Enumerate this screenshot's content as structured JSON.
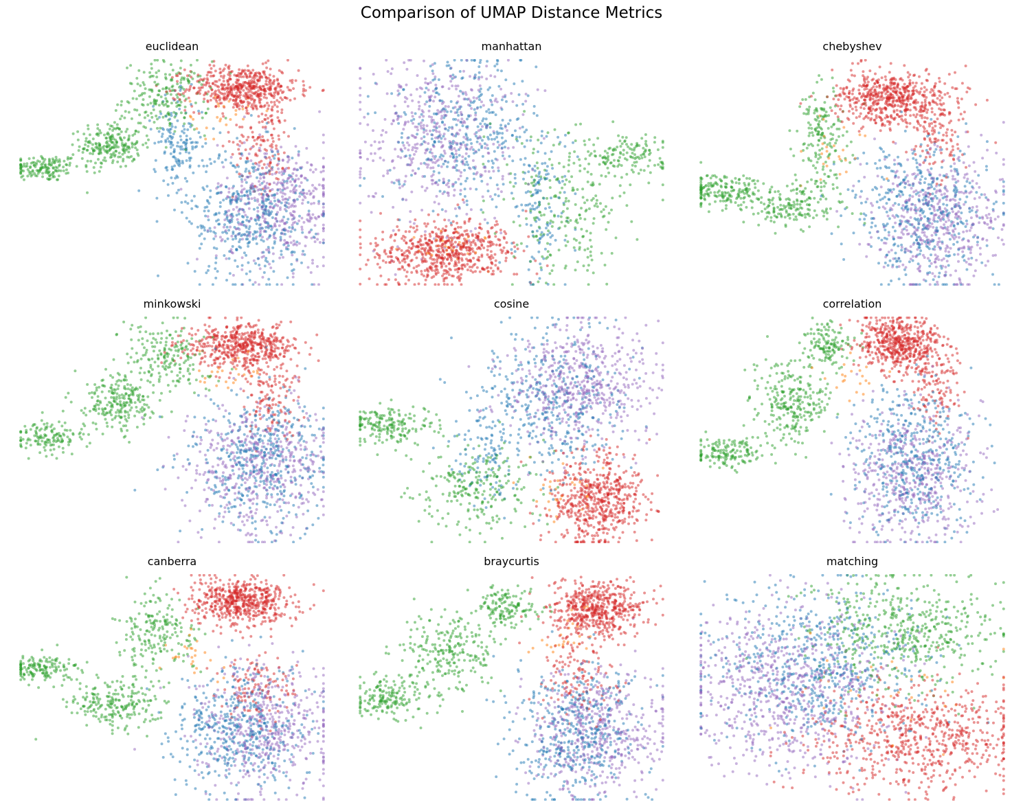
{
  "title": "Comparison of UMAP Distance Metrics",
  "colors": {
    "blue": "#1f77b4",
    "orange": "#ff7f0e",
    "green": "#2ca02c",
    "red": "#d62728",
    "purple": "#9467bd"
  },
  "chart_data": [
    {
      "type": "scatter",
      "title": "euclidean",
      "axes": "off",
      "grid": false,
      "legend": "none",
      "xlim": [
        0,
        100
      ],
      "ylim": [
        0,
        100
      ],
      "clusters": [
        {
          "color": "green",
          "n": 150,
          "cx": 8,
          "cy": 52,
          "sx": 6,
          "sy": 3
        },
        {
          "color": "green",
          "n": 220,
          "cx": 30,
          "cy": 62,
          "sx": 5,
          "sy": 5
        },
        {
          "color": "green",
          "n": 200,
          "cx": 48,
          "cy": 83,
          "sx": 7,
          "sy": 8
        },
        {
          "color": "red",
          "n": 520,
          "cx": 73,
          "cy": 87,
          "sx": 9,
          "sy": 5
        },
        {
          "color": "red",
          "n": 130,
          "cx": 80,
          "cy": 63,
          "sx": 5,
          "sy": 10
        },
        {
          "color": "orange",
          "n": 25,
          "cx": 65,
          "cy": 75,
          "sx": 5,
          "sy": 5
        },
        {
          "color": "blue",
          "n": 150,
          "cx": 52,
          "cy": 63,
          "sx": 4,
          "sy": 10
        },
        {
          "color": "blue",
          "n": 440,
          "cx": 75,
          "cy": 32,
          "sx": 10,
          "sy": 15
        },
        {
          "color": "purple",
          "n": 480,
          "cx": 85,
          "cy": 36,
          "sx": 10,
          "sy": 14
        }
      ]
    },
    {
      "type": "scatter",
      "title": "manhattan",
      "axes": "off",
      "grid": false,
      "legend": "none",
      "xlim": [
        0,
        100
      ],
      "ylim": [
        0,
        100
      ],
      "clusters": [
        {
          "color": "purple",
          "n": 480,
          "cx": 25,
          "cy": 65,
          "sx": 12,
          "sy": 18
        },
        {
          "color": "blue",
          "n": 380,
          "cx": 35,
          "cy": 68,
          "sx": 12,
          "sy": 16
        },
        {
          "color": "red",
          "n": 620,
          "cx": 28,
          "cy": 15,
          "sx": 11,
          "sy": 7
        },
        {
          "color": "orange",
          "n": 30,
          "cx": 32,
          "cy": 18,
          "sx": 7,
          "sy": 5
        },
        {
          "color": "green",
          "n": 250,
          "cx": 68,
          "cy": 35,
          "sx": 10,
          "sy": 17
        },
        {
          "color": "green",
          "n": 130,
          "cx": 88,
          "cy": 57,
          "sx": 8,
          "sy": 4
        },
        {
          "color": "blue",
          "n": 130,
          "cx": 60,
          "cy": 38,
          "sx": 5,
          "sy": 15
        }
      ]
    },
    {
      "type": "scatter",
      "title": "chebyshev",
      "axes": "off",
      "grid": false,
      "legend": "none",
      "xlim": [
        0,
        100
      ],
      "ylim": [
        0,
        100
      ],
      "clusters": [
        {
          "color": "red",
          "n": 560,
          "cx": 63,
          "cy": 83,
          "sx": 9,
          "sy": 6
        },
        {
          "color": "red",
          "n": 120,
          "cx": 78,
          "cy": 68,
          "sx": 5,
          "sy": 9
        },
        {
          "color": "green",
          "n": 180,
          "cx": 8,
          "cy": 42,
          "sx": 7,
          "sy": 4
        },
        {
          "color": "green",
          "n": 180,
          "cx": 32,
          "cy": 36,
          "sx": 8,
          "sy": 5
        },
        {
          "color": "green",
          "n": 160,
          "cx": 40,
          "cy": 68,
          "sx": 4,
          "sy": 10
        },
        {
          "color": "blue",
          "n": 450,
          "cx": 73,
          "cy": 32,
          "sx": 11,
          "sy": 16
        },
        {
          "color": "purple",
          "n": 480,
          "cx": 78,
          "cy": 30,
          "sx": 11,
          "sy": 15
        },
        {
          "color": "orange",
          "n": 25,
          "cx": 45,
          "cy": 60,
          "sx": 5,
          "sy": 8
        }
      ]
    },
    {
      "type": "scatter",
      "title": "minkowski",
      "axes": "off",
      "grid": false,
      "legend": "none",
      "xlim": [
        0,
        100
      ],
      "ylim": [
        0,
        100
      ],
      "clusters": [
        {
          "color": "green",
          "n": 140,
          "cx": 10,
          "cy": 47,
          "sx": 7,
          "sy": 4
        },
        {
          "color": "green",
          "n": 220,
          "cx": 33,
          "cy": 62,
          "sx": 6,
          "sy": 6
        },
        {
          "color": "green",
          "n": 190,
          "cx": 48,
          "cy": 82,
          "sx": 7,
          "sy": 8
        },
        {
          "color": "red",
          "n": 520,
          "cx": 73,
          "cy": 87,
          "sx": 9,
          "sy": 5
        },
        {
          "color": "red",
          "n": 120,
          "cx": 82,
          "cy": 63,
          "sx": 5,
          "sy": 9
        },
        {
          "color": "orange",
          "n": 25,
          "cx": 67,
          "cy": 75,
          "sx": 6,
          "sy": 5
        },
        {
          "color": "blue",
          "n": 440,
          "cx": 78,
          "cy": 35,
          "sx": 11,
          "sy": 15
        },
        {
          "color": "purple",
          "n": 480,
          "cx": 78,
          "cy": 33,
          "sx": 11,
          "sy": 15
        }
      ]
    },
    {
      "type": "scatter",
      "title": "cosine",
      "axes": "off",
      "grid": false,
      "legend": "none",
      "xlim": [
        0,
        100
      ],
      "ylim": [
        0,
        100
      ],
      "clusters": [
        {
          "color": "purple",
          "n": 520,
          "cx": 72,
          "cy": 70,
          "sx": 12,
          "sy": 14
        },
        {
          "color": "blue",
          "n": 380,
          "cx": 63,
          "cy": 64,
          "sx": 12,
          "sy": 16
        },
        {
          "color": "red",
          "n": 560,
          "cx": 78,
          "cy": 20,
          "sx": 8,
          "sy": 10
        },
        {
          "color": "orange",
          "n": 30,
          "cx": 68,
          "cy": 23,
          "sx": 6,
          "sy": 6
        },
        {
          "color": "green",
          "n": 180,
          "cx": 10,
          "cy": 52,
          "sx": 7,
          "sy": 4
        },
        {
          "color": "green",
          "n": 240,
          "cx": 38,
          "cy": 25,
          "sx": 10,
          "sy": 10
        },
        {
          "color": "blue",
          "n": 110,
          "cx": 42,
          "cy": 40,
          "sx": 5,
          "sy": 12
        }
      ]
    },
    {
      "type": "scatter",
      "title": "correlation",
      "axes": "off",
      "grid": false,
      "legend": "none",
      "xlim": [
        0,
        100
      ],
      "ylim": [
        0,
        100
      ],
      "clusters": [
        {
          "color": "red",
          "n": 540,
          "cx": 66,
          "cy": 88,
          "sx": 7,
          "sy": 6
        },
        {
          "color": "red",
          "n": 110,
          "cx": 78,
          "cy": 68,
          "sx": 4,
          "sy": 8
        },
        {
          "color": "green",
          "n": 150,
          "cx": 8,
          "cy": 40,
          "sx": 6,
          "sy": 3
        },
        {
          "color": "green",
          "n": 260,
          "cx": 30,
          "cy": 62,
          "sx": 6,
          "sy": 9
        },
        {
          "color": "green",
          "n": 130,
          "cx": 42,
          "cy": 88,
          "sx": 4,
          "sy": 5
        },
        {
          "color": "blue",
          "n": 430,
          "cx": 70,
          "cy": 38,
          "sx": 10,
          "sy": 16
        },
        {
          "color": "purple",
          "n": 480,
          "cx": 70,
          "cy": 30,
          "sx": 11,
          "sy": 16
        },
        {
          "color": "orange",
          "n": 20,
          "cx": 52,
          "cy": 73,
          "sx": 5,
          "sy": 5
        }
      ]
    },
    {
      "type": "scatter",
      "title": "canberra",
      "axes": "off",
      "grid": false,
      "legend": "none",
      "xlim": [
        0,
        100
      ],
      "ylim": [
        0,
        100
      ],
      "clusters": [
        {
          "color": "red",
          "n": 560,
          "cx": 73,
          "cy": 88,
          "sx": 8,
          "sy": 5
        },
        {
          "color": "red",
          "n": 110,
          "cx": 78,
          "cy": 50,
          "sx": 6,
          "sy": 8
        },
        {
          "color": "green",
          "n": 150,
          "cx": 8,
          "cy": 58,
          "sx": 6,
          "sy": 3
        },
        {
          "color": "green",
          "n": 220,
          "cx": 32,
          "cy": 43,
          "sx": 8,
          "sy": 6
        },
        {
          "color": "green",
          "n": 190,
          "cx": 45,
          "cy": 73,
          "sx": 6,
          "sy": 9
        },
        {
          "color": "blue",
          "n": 440,
          "cx": 72,
          "cy": 30,
          "sx": 11,
          "sy": 14
        },
        {
          "color": "purple",
          "n": 480,
          "cx": 80,
          "cy": 32,
          "sx": 11,
          "sy": 14
        },
        {
          "color": "orange",
          "n": 25,
          "cx": 55,
          "cy": 65,
          "sx": 6,
          "sy": 6
        }
      ]
    },
    {
      "type": "scatter",
      "title": "braycurtis",
      "axes": "off",
      "grid": false,
      "legend": "none",
      "xlim": [
        0,
        100
      ],
      "ylim": [
        0,
        100
      ],
      "clusters": [
        {
          "color": "red",
          "n": 520,
          "cx": 78,
          "cy": 85,
          "sx": 8,
          "sy": 6
        },
        {
          "color": "red",
          "n": 130,
          "cx": 72,
          "cy": 58,
          "sx": 6,
          "sy": 10
        },
        {
          "color": "green",
          "n": 170,
          "cx": 10,
          "cy": 45,
          "sx": 6,
          "sy": 5
        },
        {
          "color": "green",
          "n": 240,
          "cx": 30,
          "cy": 66,
          "sx": 8,
          "sy": 9
        },
        {
          "color": "green",
          "n": 140,
          "cx": 48,
          "cy": 85,
          "sx": 5,
          "sy": 4
        },
        {
          "color": "blue",
          "n": 440,
          "cx": 72,
          "cy": 30,
          "sx": 11,
          "sy": 15
        },
        {
          "color": "purple",
          "n": 480,
          "cx": 78,
          "cy": 30,
          "sx": 12,
          "sy": 14
        },
        {
          "color": "orange",
          "n": 25,
          "cx": 68,
          "cy": 72,
          "sx": 6,
          "sy": 6
        }
      ]
    },
    {
      "type": "scatter",
      "title": "matching",
      "axes": "off",
      "grid": false,
      "legend": "none",
      "xlim": [
        0,
        100
      ],
      "ylim": [
        0,
        100
      ],
      "clusters": [
        {
          "color": "purple",
          "n": 700,
          "cx": 28,
          "cy": 50,
          "sx": 16,
          "sy": 18
        },
        {
          "color": "blue",
          "n": 560,
          "cx": 38,
          "cy": 60,
          "sx": 18,
          "sy": 17
        },
        {
          "color": "green",
          "n": 480,
          "cx": 68,
          "cy": 75,
          "sx": 16,
          "sy": 12
        },
        {
          "color": "red",
          "n": 650,
          "cx": 72,
          "cy": 28,
          "sx": 18,
          "sy": 12
        },
        {
          "color": "orange",
          "n": 30,
          "cx": 60,
          "cy": 45,
          "sx": 20,
          "sy": 15
        }
      ]
    }
  ]
}
